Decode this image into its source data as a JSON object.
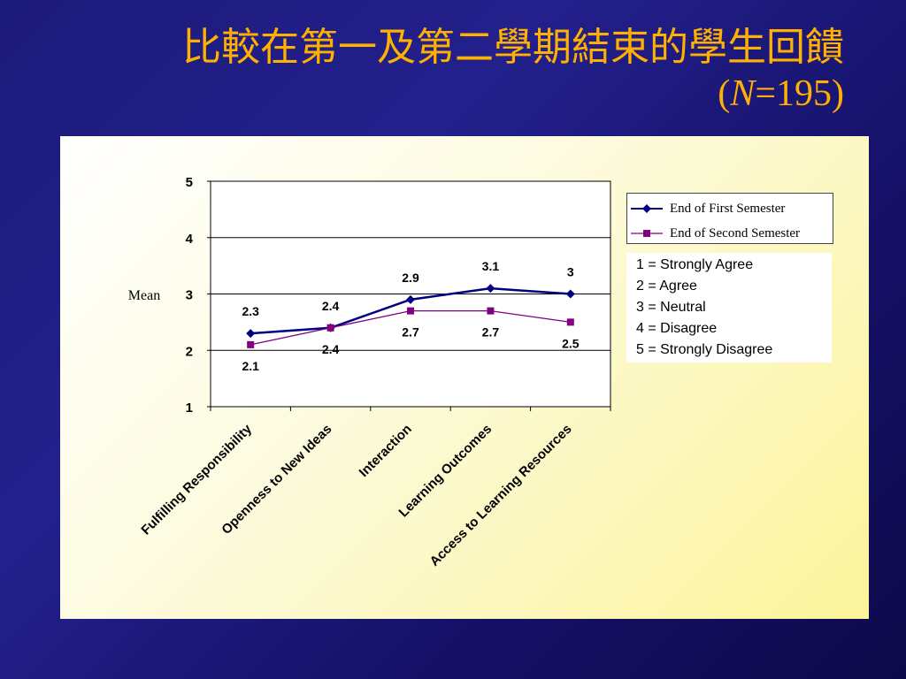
{
  "slide": {
    "title_line1": "比較在第一及第二學期結束的學生回饋",
    "title_line2_prefix": "(",
    "title_line2_italic": "N",
    "title_line2_suffix": "=195)"
  },
  "chart_data": {
    "type": "line",
    "ylabel": "Mean",
    "xlabel": "",
    "ylim": [
      1,
      5
    ],
    "yticks": [
      1,
      2,
      3,
      4,
      5
    ],
    "grid": true,
    "legend_position": "right",
    "categories": [
      "Fulfilling Responsibility",
      "Openness to New Ideas",
      "Interaction",
      "Learning Outcomes",
      "Access to Learning Resources"
    ],
    "series": [
      {
        "name": "End of First Semester",
        "values": [
          2.3,
          2.4,
          2.9,
          3.1,
          3.0
        ],
        "labels": [
          "2.3",
          "2.4",
          "2.9",
          "3.1",
          "3"
        ],
        "color": "#000080",
        "marker": "diamond"
      },
      {
        "name": "End of Second Semester",
        "values": [
          2.1,
          2.4,
          2.7,
          2.7,
          2.5
        ],
        "labels": [
          "2.1",
          "2.4",
          "2.7",
          "2.7",
          "2.5"
        ],
        "color": "#800080",
        "marker": "square"
      }
    ],
    "scale_notes": [
      "1 = Strongly Agree",
      "2 = Agree",
      "3 = Neutral",
      "4 = Disagree",
      "5 = Strongly Disagree"
    ]
  }
}
